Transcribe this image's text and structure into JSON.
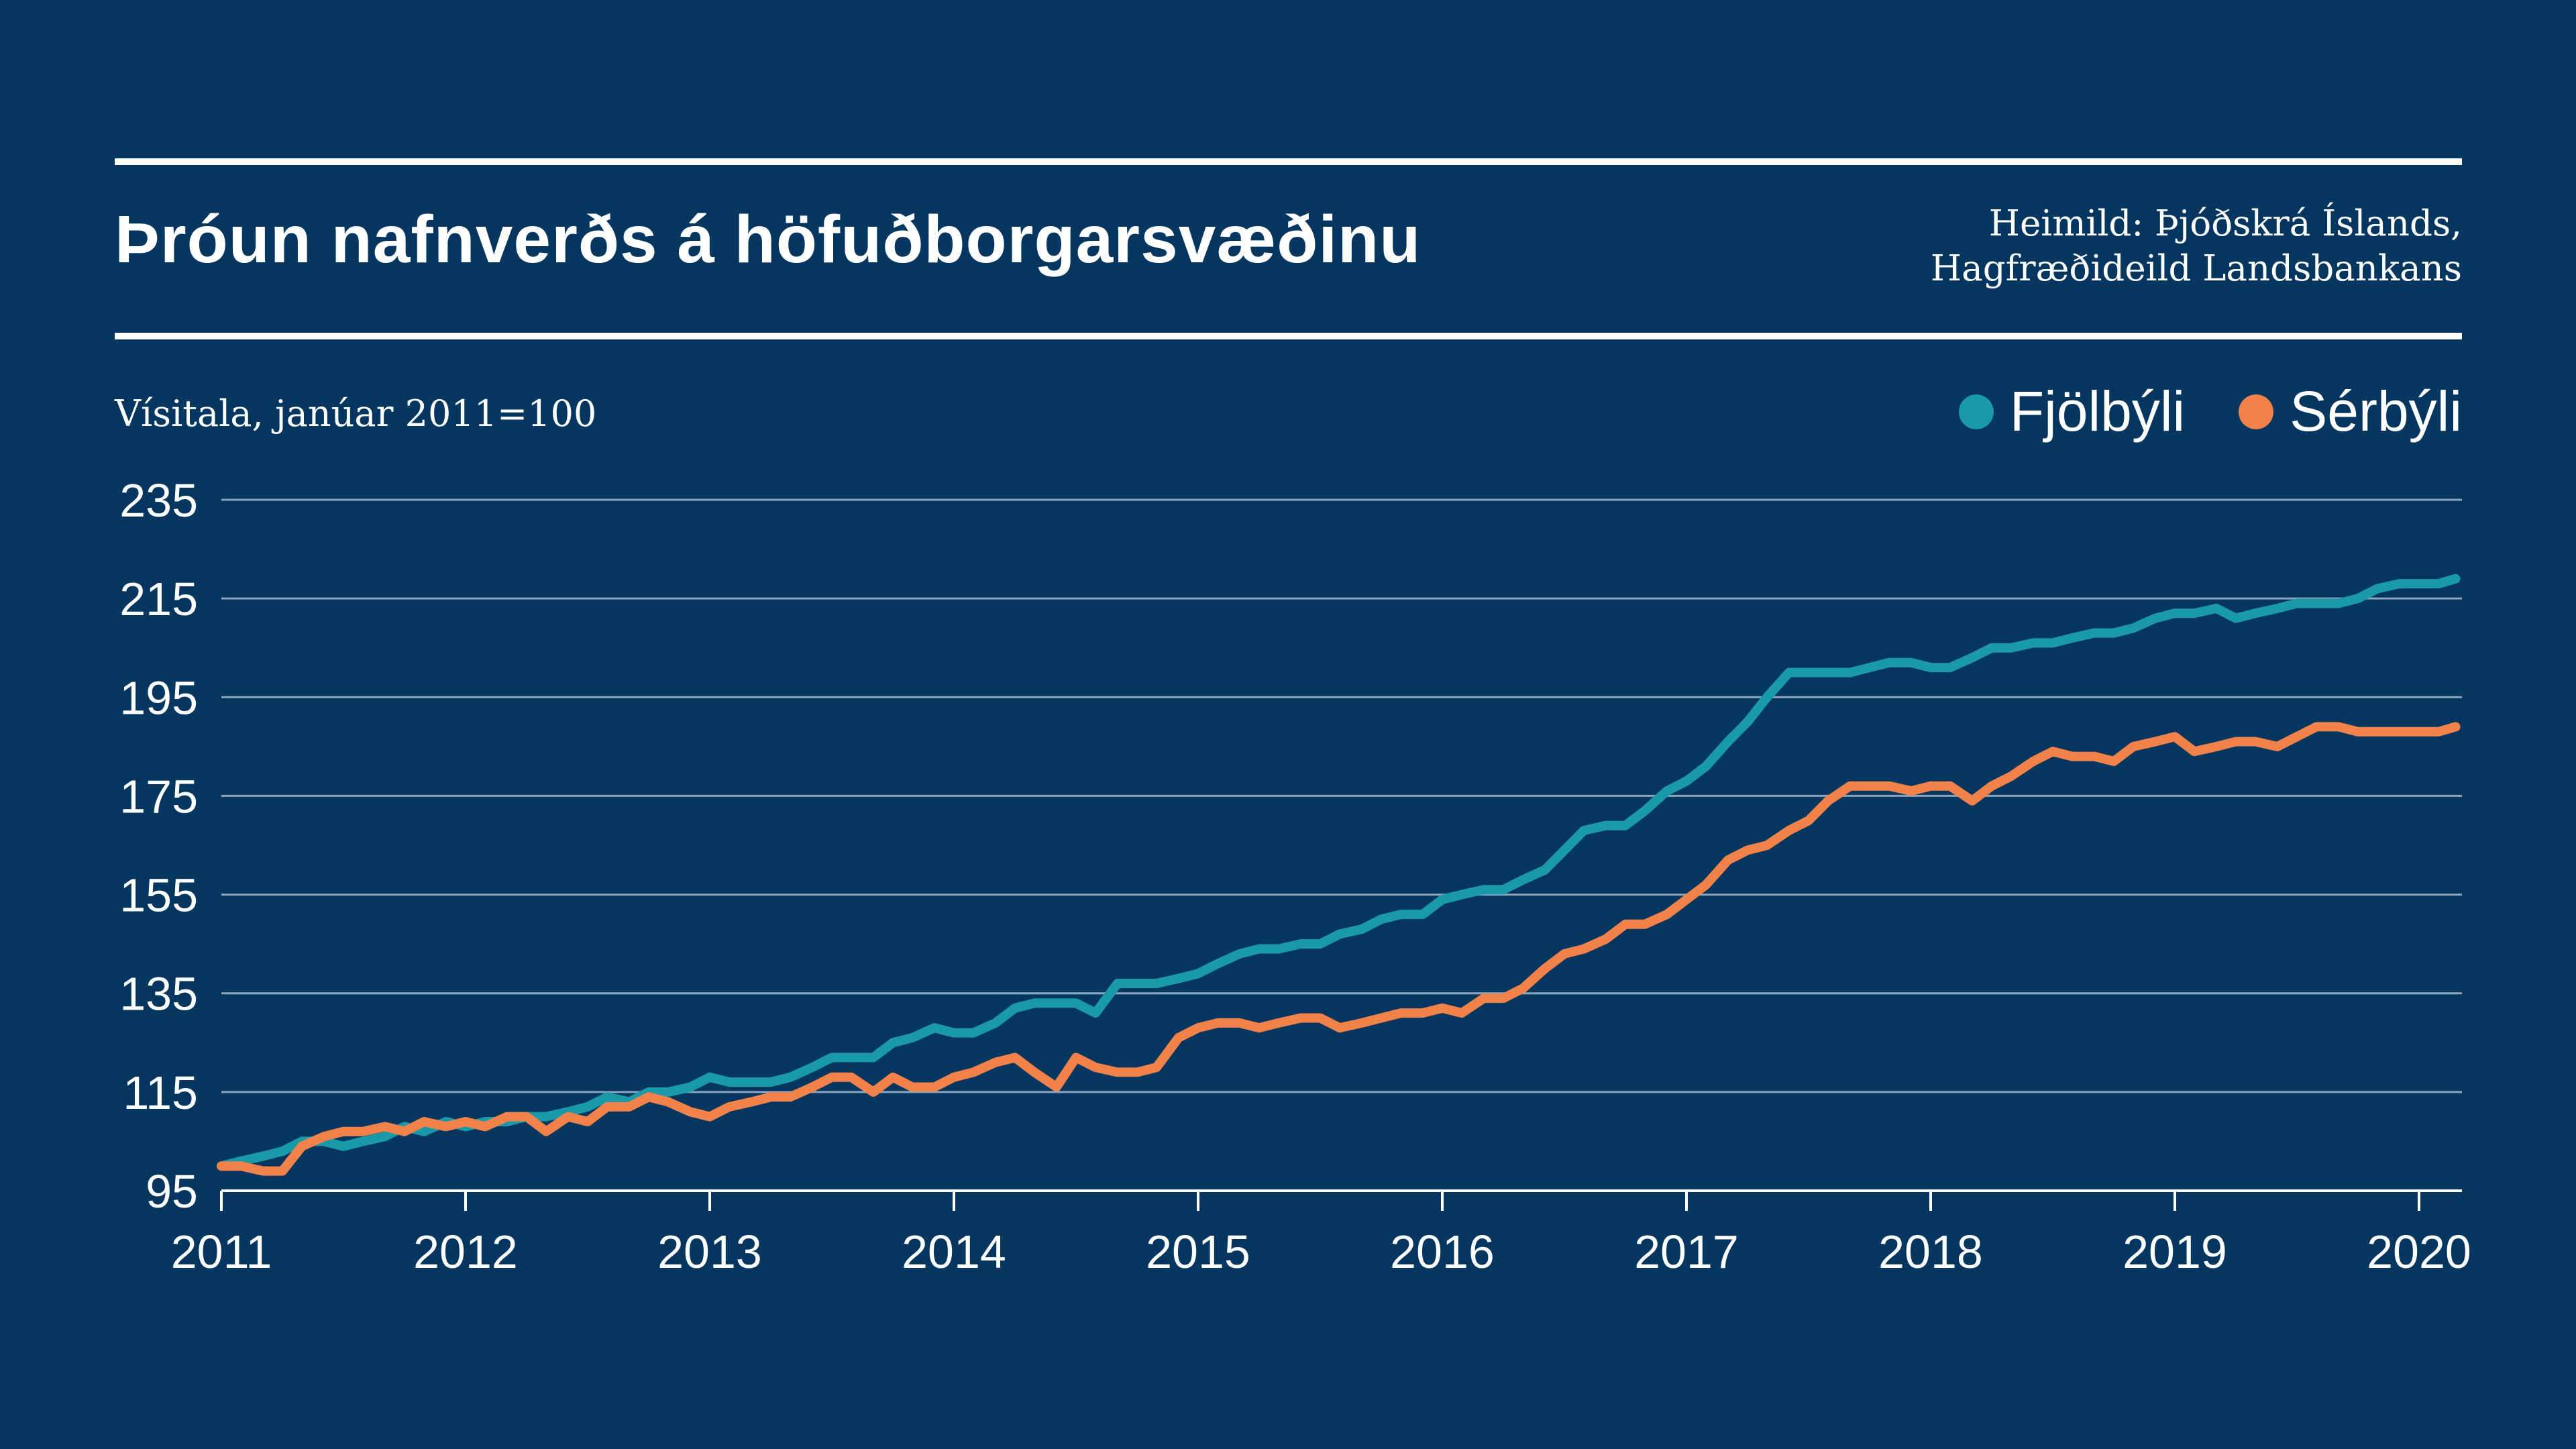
{
  "title": "Þróun nafnverðs á höfuðborgarsvæðinu",
  "source_line1": "Heimild: Þjóðskrá Íslands,",
  "source_line2": "Hagfræðideild Landsbankans",
  "subtitle": "Vísitala, janúar 2011=100",
  "colors": {
    "background": "#043660",
    "fjolbyli": "#1a9aa8",
    "serbyli": "#f0824a",
    "grid": "#8fa3bb"
  },
  "chart_data": {
    "type": "line",
    "ylabel": "Vísitala, janúar 2011=100",
    "ylim": [
      95,
      235
    ],
    "yticks": [
      95,
      115,
      135,
      155,
      175,
      195,
      215,
      235
    ],
    "xlim": [
      2011,
      2020.18
    ],
    "xticks": [
      2011,
      2012,
      2013,
      2014,
      2015,
      2016,
      2017,
      2018,
      2019,
      2020
    ],
    "grid": true,
    "legend_position": "top-right",
    "series": [
      {
        "name": "Fjölbýli",
        "color": "#1a9aa8",
        "x": [
          2011.0,
          2011.08,
          2011.17,
          2011.25,
          2011.33,
          2011.42,
          2011.5,
          2011.58,
          2011.67,
          2011.75,
          2011.83,
          2011.92,
          2012.0,
          2012.08,
          2012.17,
          2012.25,
          2012.33,
          2012.42,
          2012.5,
          2012.58,
          2012.67,
          2012.75,
          2012.83,
          2012.92,
          2013.0,
          2013.08,
          2013.17,
          2013.25,
          2013.33,
          2013.42,
          2013.5,
          2013.58,
          2013.67,
          2013.75,
          2013.83,
          2013.92,
          2014.0,
          2014.08,
          2014.17,
          2014.25,
          2014.33,
          2014.42,
          2014.5,
          2014.58,
          2014.67,
          2014.75,
          2014.83,
          2014.92,
          2015.0,
          2015.08,
          2015.17,
          2015.25,
          2015.33,
          2015.42,
          2015.5,
          2015.58,
          2015.67,
          2015.75,
          2015.83,
          2015.92,
          2016.0,
          2016.08,
          2016.17,
          2016.25,
          2016.33,
          2016.42,
          2016.5,
          2016.58,
          2016.67,
          2016.75,
          2016.83,
          2016.92,
          2017.0,
          2017.08,
          2017.17,
          2017.25,
          2017.33,
          2017.42,
          2017.5,
          2017.58,
          2017.67,
          2017.75,
          2017.83,
          2017.92,
          2018.0,
          2018.08,
          2018.17,
          2018.25,
          2018.33,
          2018.42,
          2018.5,
          2018.58,
          2018.67,
          2018.75,
          2018.83,
          2018.92,
          2019.0,
          2019.08,
          2019.17,
          2019.25,
          2019.33,
          2019.42,
          2019.5,
          2019.58,
          2019.67,
          2019.75,
          2019.83,
          2019.92,
          2020.0,
          2020.08,
          2020.15
        ],
        "values": [
          100,
          101,
          102,
          103,
          105,
          105,
          104,
          105,
          106,
          108,
          107,
          109,
          108,
          109,
          109,
          110,
          110,
          111,
          112,
          114,
          113,
          115,
          115,
          116,
          118,
          117,
          117,
          117,
          118,
          120,
          122,
          122,
          122,
          125,
          126,
          128,
          127,
          127,
          129,
          132,
          133,
          133,
          133,
          131,
          137,
          137,
          137,
          138,
          139,
          141,
          143,
          144,
          144,
          145,
          145,
          147,
          148,
          150,
          151,
          151,
          154,
          155,
          156,
          156,
          158,
          160,
          164,
          168,
          169,
          169,
          172,
          176,
          178,
          181,
          186,
          190,
          195,
          200,
          200,
          200,
          200,
          201,
          202,
          202,
          201,
          201,
          203,
          205,
          205,
          206,
          206,
          207,
          208,
          208,
          209,
          211,
          212,
          212,
          213,
          211,
          212,
          213,
          214,
          214,
          214,
          215,
          217,
          218,
          218,
          218,
          219
        ]
      },
      {
        "name": "Sérbýli",
        "color": "#f0824a",
        "x": [
          2011.0,
          2011.08,
          2011.17,
          2011.25,
          2011.33,
          2011.42,
          2011.5,
          2011.58,
          2011.67,
          2011.75,
          2011.83,
          2011.92,
          2012.0,
          2012.08,
          2012.17,
          2012.25,
          2012.33,
          2012.42,
          2012.5,
          2012.58,
          2012.67,
          2012.75,
          2012.83,
          2012.92,
          2013.0,
          2013.08,
          2013.17,
          2013.25,
          2013.33,
          2013.42,
          2013.5,
          2013.58,
          2013.67,
          2013.75,
          2013.83,
          2013.92,
          2014.0,
          2014.08,
          2014.17,
          2014.25,
          2014.33,
          2014.42,
          2014.5,
          2014.58,
          2014.67,
          2014.75,
          2014.83,
          2014.92,
          2015.0,
          2015.08,
          2015.17,
          2015.25,
          2015.33,
          2015.42,
          2015.5,
          2015.58,
          2015.67,
          2015.75,
          2015.83,
          2015.92,
          2016.0,
          2016.08,
          2016.17,
          2016.25,
          2016.33,
          2016.42,
          2016.5,
          2016.58,
          2016.67,
          2016.75,
          2016.83,
          2016.92,
          2017.0,
          2017.08,
          2017.17,
          2017.25,
          2017.33,
          2017.42,
          2017.5,
          2017.58,
          2017.67,
          2017.75,
          2017.83,
          2017.92,
          2018.0,
          2018.08,
          2018.17,
          2018.25,
          2018.33,
          2018.42,
          2018.5,
          2018.58,
          2018.67,
          2018.75,
          2018.83,
          2018.92,
          2019.0,
          2019.08,
          2019.17,
          2019.25,
          2019.33,
          2019.42,
          2019.5,
          2019.58,
          2019.67,
          2019.75,
          2019.83,
          2019.92,
          2020.0,
          2020.08,
          2020.15
        ],
        "values": [
          100,
          100,
          99,
          99,
          104,
          106,
          107,
          107,
          108,
          107,
          109,
          108,
          109,
          108,
          110,
          110,
          107,
          110,
          109,
          112,
          112,
          114,
          113,
          111,
          110,
          112,
          113,
          114,
          114,
          116,
          118,
          118,
          115,
          118,
          116,
          116,
          118,
          119,
          121,
          122,
          119,
          116,
          122,
          120,
          119,
          119,
          120,
          126,
          128,
          129,
          129,
          128,
          129,
          130,
          130,
          128,
          129,
          130,
          131,
          131,
          132,
          131,
          134,
          134,
          136,
          140,
          143,
          144,
          146,
          149,
          149,
          151,
          154,
          157,
          162,
          164,
          165,
          168,
          170,
          174,
          177,
          177,
          177,
          176,
          177,
          177,
          174,
          177,
          179,
          182,
          184,
          183,
          183,
          182,
          185,
          186,
          187,
          184,
          185,
          186,
          186,
          185,
          187,
          189,
          189,
          188,
          188,
          188,
          188,
          188,
          189
        ]
      }
    ]
  }
}
